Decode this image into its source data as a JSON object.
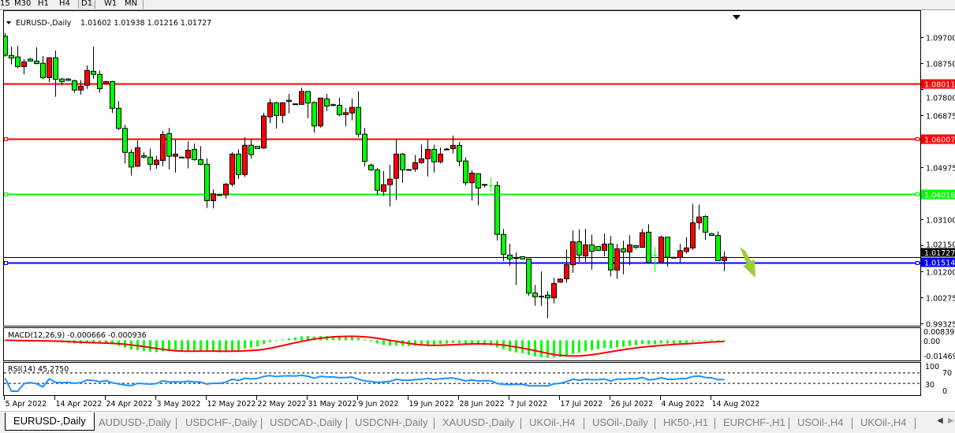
{
  "toolbar": {
    "timeframes": [
      "15",
      "M30",
      "H1",
      "H4",
      "D1",
      "W1",
      "MN"
    ],
    "active_timeframe": "D1"
  },
  "chart_header": {
    "symbol_period": "EURUSD-,Daily",
    "ohlc": "1.01602 1.01938 1.01216 1.01727"
  },
  "colors": {
    "bull_candle": "#ff0000",
    "bear_candle": "#00ff00",
    "resistance_line": "#ff0000",
    "support_green_line": "#00ff00",
    "support_blue_line": "#0000ff",
    "macd_histogram": "#00ff00",
    "macd_signal": "#ff0000",
    "rsi_line": "#1e90ff",
    "arrow": "#9acd32",
    "background": "#ffffff"
  },
  "chart_data": {
    "type": "candlestick",
    "symbol": "EURUSD-",
    "period": "Daily",
    "candle_fields": [
      "open",
      "high",
      "low",
      "close"
    ],
    "candles": [
      [
        1.0973,
        1.0985,
        1.0899,
        1.0904
      ],
      [
        1.0903,
        1.0935,
        1.0871,
        1.0894
      ],
      [
        1.0898,
        1.0938,
        1.0857,
        1.0863
      ],
      [
        1.0863,
        1.089,
        1.0835,
        1.088
      ],
      [
        1.089,
        1.0895,
        1.0882,
        1.0883
      ],
      [
        1.0883,
        1.0933,
        1.0871,
        1.0874
      ],
      [
        1.0875,
        1.0901,
        1.0818,
        1.0823
      ],
      [
        1.0823,
        1.0897,
        1.0806,
        1.0895
      ],
      [
        1.0895,
        1.0921,
        1.0754,
        1.0817
      ],
      [
        1.0818,
        1.0821,
        1.0795,
        1.0809
      ],
      [
        1.0818,
        1.0821,
        1.0811,
        1.0813
      ],
      [
        1.0812,
        1.0816,
        1.0768,
        1.0778
      ],
      [
        1.0778,
        1.0814,
        1.0761,
        1.0792
      ],
      [
        1.0795,
        1.0868,
        1.0782,
        1.0849
      ],
      [
        1.0846,
        1.0935,
        1.0818,
        1.0835
      ],
      [
        1.0835,
        1.0849,
        1.0768,
        1.0783
      ],
      [
        1.0802,
        1.0811,
        1.08,
        1.0809
      ],
      [
        1.0809,
        1.0811,
        1.0695,
        1.0712
      ],
      [
        1.0712,
        1.0738,
        1.0633,
        1.0639
      ],
      [
        1.0639,
        1.0652,
        1.0512,
        1.0552
      ],
      [
        1.0552,
        1.0563,
        1.0468,
        1.0499
      ],
      [
        1.0502,
        1.0595,
        1.0499,
        1.0569
      ],
      [
        1.054,
        1.0552,
        1.053,
        1.0535
      ],
      [
        1.0535,
        1.0566,
        1.0487,
        1.0509
      ],
      [
        1.0508,
        1.054,
        1.0493,
        1.0524
      ],
      [
        1.0523,
        1.063,
        1.0502,
        1.0617
      ],
      [
        1.062,
        1.0641,
        1.0491,
        1.0538
      ],
      [
        1.0538,
        1.0598,
        1.0479,
        1.0546
      ],
      [
        1.0535,
        1.0537,
        1.0533,
        1.0534
      ],
      [
        1.0532,
        1.0592,
        1.0494,
        1.056
      ],
      [
        1.0563,
        1.0584,
        1.0522,
        1.0526
      ],
      [
        1.0526,
        1.0575,
        1.0506,
        1.0509
      ],
      [
        1.0509,
        1.0531,
        1.0351,
        1.0377
      ],
      [
        1.0377,
        1.0418,
        1.0349,
        1.0402
      ],
      [
        1.0399,
        1.04,
        1.0397,
        1.0398
      ],
      [
        1.0398,
        1.0441,
        1.0385,
        1.0437
      ],
      [
        1.0437,
        1.0553,
        1.0429,
        1.0546
      ],
      [
        1.0546,
        1.0563,
        1.0456,
        1.0472
      ],
      [
        1.0472,
        1.0607,
        1.0463,
        1.0578
      ],
      [
        1.0578,
        1.0598,
        1.053,
        1.0544
      ],
      [
        1.0574,
        1.0575,
        1.0565,
        1.0566
      ],
      [
        1.0568,
        1.0696,
        1.0565,
        1.0684
      ],
      [
        1.0681,
        1.0747,
        1.0658,
        1.0732
      ],
      [
        1.0732,
        1.0736,
        1.0639,
        1.0686
      ],
      [
        1.0686,
        1.0733,
        1.0658,
        1.0732
      ],
      [
        1.0741,
        1.0764,
        1.0694,
        1.0737
      ],
      [
        1.0728,
        1.0729,
        1.0724,
        1.0727
      ],
      [
        1.0726,
        1.0787,
        1.0725,
        1.0773
      ],
      [
        1.0773,
        1.0773,
        1.0676,
        1.0731
      ],
      [
        1.0733,
        1.0737,
        1.0624,
        1.0648
      ],
      [
        1.0648,
        1.075,
        1.0642,
        1.0749
      ],
      [
        1.0746,
        1.0764,
        1.0702,
        1.072
      ],
      [
        1.0725,
        1.0729,
        1.0721,
        1.0724
      ],
      [
        1.0723,
        1.075,
        1.0683,
        1.0689
      ],
      [
        1.0689,
        1.0713,
        1.0647,
        1.0696
      ],
      [
        1.0695,
        1.0747,
        1.0668,
        1.0715
      ],
      [
        1.0715,
        1.0773,
        1.0607,
        1.0618
      ],
      [
        1.0618,
        1.0641,
        1.0502,
        1.052
      ],
      [
        1.0506,
        1.0512,
        1.0485,
        1.0489
      ],
      [
        1.0489,
        1.0495,
        1.0396,
        1.0415
      ],
      [
        1.0411,
        1.0485,
        1.0394,
        1.0435
      ],
      [
        1.0435,
        1.0507,
        1.0356,
        1.0455
      ],
      [
        1.0458,
        1.0598,
        1.0379,
        1.0546
      ],
      [
        1.0546,
        1.055,
        1.0442,
        1.0489
      ],
      [
        1.049,
        1.0492,
        1.0488,
        1.0489
      ],
      [
        1.0492,
        1.0543,
        1.0482,
        1.0515
      ],
      [
        1.0515,
        1.0581,
        1.0511,
        1.0529
      ],
      [
        1.0529,
        1.0598,
        1.0465,
        1.0563
      ],
      [
        1.0563,
        1.058,
        1.0479,
        1.0518
      ],
      [
        1.0518,
        1.0569,
        1.0512,
        1.0546
      ],
      [
        1.0564,
        1.0569,
        1.0562,
        1.0563
      ],
      [
        1.0566,
        1.0613,
        1.0548,
        1.0577
      ],
      [
        1.0577,
        1.059,
        1.0502,
        1.052
      ],
      [
        1.0521,
        1.0534,
        1.0432,
        1.0442
      ],
      [
        1.0442,
        1.0487,
        1.0378,
        1.0477
      ],
      [
        1.0475,
        1.0476,
        1.0361,
        1.0423
      ],
      [
        1.0436,
        1.0436,
        1.0425,
        1.0435
      ],
      [
        1.0431,
        1.0461,
        1.0409,
        1.0431
      ],
      [
        1.0432,
        1.0447,
        1.0233,
        1.0255
      ],
      [
        1.0255,
        1.0275,
        1.0158,
        1.0183
      ],
      [
        1.018,
        1.0221,
        1.0142,
        1.0166
      ],
      [
        1.0171,
        1.019,
        1.0071,
        1.017
      ],
      [
        1.0174,
        1.0174,
        1.0163,
        1.0166
      ],
      [
        1.0166,
        1.0166,
        1.0032,
        1.0042
      ],
      [
        1.0043,
        1.0072,
        0.9996,
        1.0029
      ],
      [
        1.0031,
        1.0121,
        0.9996,
        1.003
      ],
      [
        1.0035,
        1.0049,
        0.9951,
        1.0025
      ],
      [
        1.0025,
        1.0098,
        1.0005,
        1.0077
      ],
      [
        1.0082,
        1.0096,
        1.0079,
        1.0093
      ],
      [
        1.0094,
        1.02,
        1.0079,
        1.0145
      ],
      [
        1.0145,
        1.0269,
        1.0116,
        1.0228
      ],
      [
        1.0228,
        1.0273,
        1.0156,
        1.018
      ],
      [
        1.0177,
        1.0275,
        1.0155,
        1.0217
      ],
      [
        1.0217,
        1.0254,
        1.0127,
        1.0194
      ],
      [
        1.0211,
        1.0212,
        1.0196,
        1.0197
      ],
      [
        1.0197,
        1.0258,
        1.0175,
        1.022
      ],
      [
        1.022,
        1.0249,
        1.0103,
        1.0126
      ],
      [
        1.0126,
        1.0221,
        1.0094,
        1.0203
      ],
      [
        1.0203,
        1.0232,
        1.011,
        1.0191
      ],
      [
        1.0191,
        1.0252,
        1.0144,
        1.0217
      ],
      [
        1.0214,
        1.0214,
        1.0202,
        1.0208
      ],
      [
        1.0208,
        1.0275,
        1.0206,
        1.0261
      ],
      [
        1.0263,
        1.0292,
        1.0154,
        1.0154
      ],
      [
        1.0179,
        1.0209,
        1.0118,
        1.0179
      ],
      [
        1.0154,
        1.0251,
        1.0154,
        1.0245
      ],
      [
        1.0245,
        1.0245,
        1.0138,
        1.0172
      ],
      [
        1.0172,
        1.0173,
        1.0168,
        1.0171
      ],
      [
        1.0171,
        1.0221,
        1.0154,
        1.0196
      ],
      [
        1.0193,
        1.0245,
        1.0186,
        1.0206
      ],
      [
        1.0206,
        1.0366,
        1.0199,
        1.0297
      ],
      [
        1.0297,
        1.0363,
        1.0272,
        1.0318
      ],
      [
        1.032,
        1.0324,
        1.0235,
        1.0263
      ],
      [
        1.0257,
        1.026,
        1.0251,
        1.0251
      ],
      [
        1.0251,
        1.0266,
        1.0159,
        1.016
      ],
      [
        1.01602,
        1.01938,
        1.01216,
        1.01727
      ]
    ],
    "x_tick_labels": [
      "5 Apr 2022",
      "14 Apr 2022",
      "24 Apr 2022",
      "3 May 2022",
      "12 May 2022",
      "22 May 2022",
      "31 May 2022",
      "9 Jun 2022",
      "19 Jun 2022",
      "28 Jun 2022",
      "7 Jul 2022",
      "17 Jul 2022",
      "26 Jul 2022",
      "4 Aug 2022",
      "14 Aug 2022"
    ],
    "x_tick_every_bars": 8,
    "y_tick_labels": [
      "1.09700",
      "1.08750",
      "1.07800",
      "1.06875",
      "1.04975",
      "1.03100",
      "1.02150",
      "1.01200",
      "1.00275",
      "0.99325"
    ],
    "ylim": [
      0.99325,
      1.097
    ],
    "current_price": "1.01727",
    "horizontal_lines": [
      {
        "price": 1.08011,
        "label": "1.08011",
        "color": "#ff0000"
      },
      {
        "price": 1.06007,
        "label": "1.06007",
        "color": "#ff0000"
      },
      {
        "price": 1.04016,
        "label": "1.04016",
        "color": "#00ff00"
      },
      {
        "price": 1.01514,
        "label": "1.01514",
        "color": "#0000ff"
      }
    ],
    "annotation": {
      "type": "arrow",
      "direction": "down-right",
      "color": "#9acd32"
    },
    "grid": false,
    "indicators": {
      "macd": {
        "label": "MACD(12,26,9) -0.000666 -0.000936",
        "fast": 12,
        "slow": 26,
        "signal": 9,
        "scale_labels": [
          "0.008399",
          "0.00",
          "-0.014693"
        ],
        "range": [
          -0.014693,
          0.008399
        ]
      },
      "rsi": {
        "label": "RSI(14) 45.2750",
        "period": 14,
        "scale_labels": [
          "100",
          "70",
          "30",
          "0"
        ],
        "levels": [
          30,
          70
        ]
      }
    }
  },
  "tabs": [
    {
      "label": "EURUSD-,Daily",
      "active": true
    },
    {
      "label": "AUDUSD-,Daily"
    },
    {
      "label": "USDCHF-,Daily"
    },
    {
      "label": "USDCAD-,Daily"
    },
    {
      "label": "USDCNH-,Daily"
    },
    {
      "label": "XAUUSD-,Daily"
    },
    {
      "label": "UKOil-,H4"
    },
    {
      "label": "USOil-,Daily"
    },
    {
      "label": "HK50-,H1"
    },
    {
      "label": "EURCHF-,H1"
    },
    {
      "label": "USOil-,H4"
    },
    {
      "label": "UKOil-,H4"
    }
  ],
  "tab_scroll": {
    "left_icon": "scroll-left-icon",
    "right_icon": "scroll-right-icon"
  }
}
